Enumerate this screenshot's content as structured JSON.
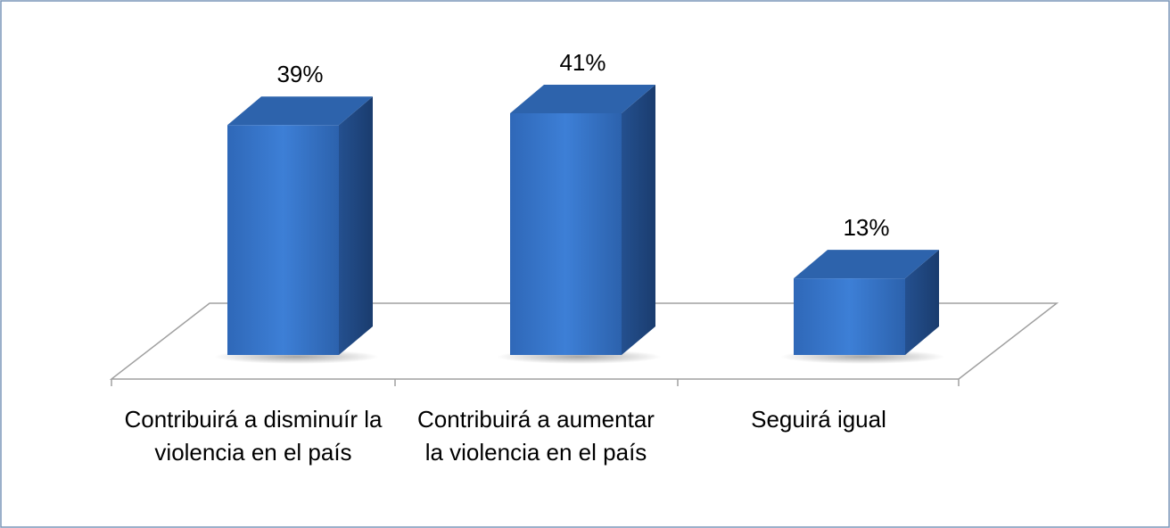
{
  "chart_data": {
    "type": "bar3d",
    "categories": [
      "Contribuirá a disminuír la violencia en el país",
      "Contribuirá a aumentar la violencia en el país",
      "Seguirá igual"
    ],
    "values": [
      39,
      41,
      13
    ],
    "value_labels": [
      "39%",
      "41%",
      "13%"
    ],
    "color": "#3a78cc"
  }
}
